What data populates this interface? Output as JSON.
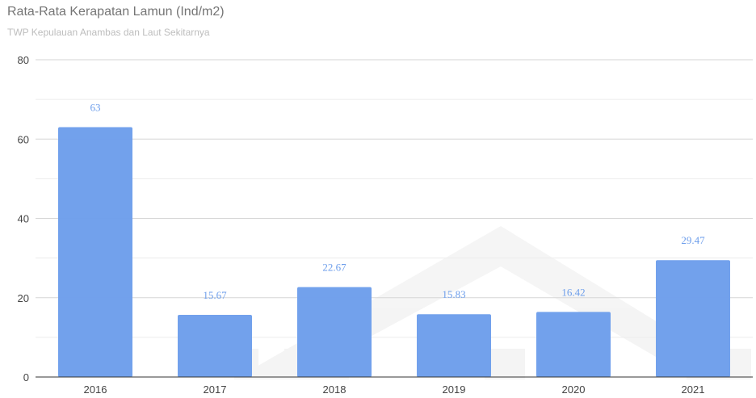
{
  "chart_data": {
    "type": "bar",
    "title": "Rata-Rata Kerapatan Lamun (Ind/m2)",
    "subtitle": "TWP Kepulauan Anambas dan Laut Sekitarnya",
    "categories": [
      "2016",
      "2017",
      "2018",
      "2019",
      "2020",
      "2021"
    ],
    "values": [
      63,
      15.67,
      22.67,
      15.83,
      16.42,
      29.47
    ],
    "data_labels": [
      "63",
      "15.67",
      "22.67",
      "15.83",
      "16.42",
      "29.47"
    ],
    "y_ticks": [
      "0",
      "20",
      "40",
      "60",
      "80"
    ],
    "ylim": [
      0,
      80
    ],
    "grid": true,
    "legend": "none",
    "bar_color": "#6d9eeb",
    "label_color": "#6d9eeb"
  }
}
